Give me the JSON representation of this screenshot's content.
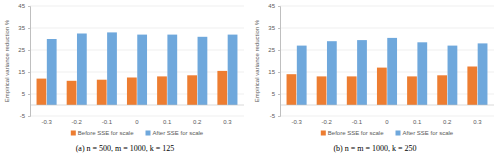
{
  "chart_data": [
    {
      "type": "bar",
      "title": "(a) n = 500, m = 1000, k = 125",
      "y_label": "Empirical variance reduction %",
      "categories": [
        "-0.3",
        "-0.2",
        "-0.1",
        "0",
        "0.1",
        "0.2",
        "0.3"
      ],
      "series": [
        {
          "name": "Before SSE for scale",
          "color": "#ed7d31",
          "values": [
            12,
            11,
            11.5,
            12.5,
            13,
            13.5,
            15.5
          ]
        },
        {
          "name": "After SSE for scale",
          "color": "#6fa8dc",
          "values": [
            30,
            32.5,
            33,
            32,
            32,
            31,
            32
          ]
        }
      ],
      "ylim": [
        -5,
        45
      ],
      "yticks": [
        -5,
        5,
        15,
        25,
        35,
        45
      ],
      "grid": true,
      "legend": "bottom"
    },
    {
      "type": "bar",
      "title": "(b) n = m = 1000, k = 250",
      "y_label": "Empirical variance reduction %",
      "categories": [
        "-0.3",
        "-0.2",
        "-0.1",
        "0",
        "0.1",
        "0.2",
        "0.3"
      ],
      "series": [
        {
          "name": "Before SSE for scale",
          "color": "#ed7d31",
          "values": [
            14,
            13,
            13,
            17,
            13,
            13.5,
            17.5
          ]
        },
        {
          "name": "After SSE for scale",
          "color": "#6fa8dc",
          "values": [
            27,
            29,
            29.5,
            30.5,
            28.5,
            27,
            28
          ]
        }
      ],
      "ylim": [
        -5,
        45
      ],
      "yticks": [
        -5,
        5,
        15,
        25,
        35,
        45
      ],
      "grid": true,
      "legend": "bottom"
    }
  ]
}
